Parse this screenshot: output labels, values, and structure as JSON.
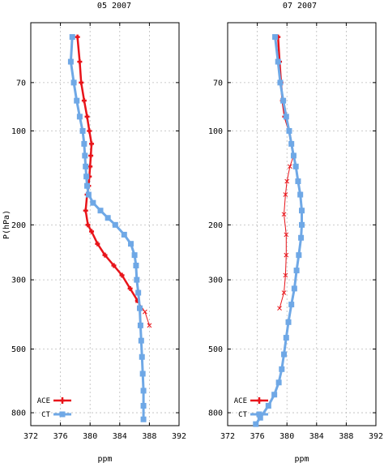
{
  "chart_data": [
    {
      "type": "line",
      "title": "05 2007",
      "xlabel": "ppm",
      "ylabel": "P(hPa)",
      "xlim": [
        372,
        392
      ],
      "xticks": [
        "372",
        "376",
        "380",
        "384",
        "388",
        "392"
      ],
      "ylim": [
        45,
        880
      ],
      "yscale": "log",
      "yticks": [
        "70",
        "100",
        "200",
        "300",
        "500",
        "800"
      ],
      "grid": true,
      "legend_position": "bottom-left",
      "series": [
        {
          "name": "ACE",
          "color": "#e8141a",
          "points": [
            {
              "y": 50,
              "x": 378.3
            },
            {
              "y": 60,
              "x": 378.6
            },
            {
              "y": 70,
              "x": 378.8
            },
            {
              "y": 80,
              "x": 379.2
            },
            {
              "y": 90,
              "x": 379.6
            },
            {
              "y": 100,
              "x": 379.9
            },
            {
              "y": 110,
              "x": 380.2
            },
            {
              "y": 120,
              "x": 380.1
            },
            {
              "y": 130,
              "x": 380.0
            },
            {
              "y": 140,
              "x": 379.9
            },
            {
              "y": 150,
              "x": 379.8
            },
            {
              "y": 160,
              "x": 379.6
            },
            {
              "y": 180,
              "x": 379.4
            },
            {
              "y": 200,
              "x": 379.7
            },
            {
              "y": 210,
              "x": 380.2
            },
            {
              "y": 230,
              "x": 381.0
            },
            {
              "y": 250,
              "x": 382.0
            },
            {
              "y": 270,
              "x": 383.2
            },
            {
              "y": 290,
              "x": 384.3
            },
            {
              "y": 320,
              "x": 385.4
            },
            {
              "y": 350,
              "x": 386.4
            }
          ]
        },
        {
          "name": "ACE",
          "color": "#e8141a",
          "points": [
            {
              "y": 350,
              "x": 386.4
            },
            {
              "y": 380,
              "x": 387.4
            },
            {
              "y": 420,
              "x": 388.0
            }
          ]
        },
        {
          "name": "CT",
          "color": "#6fa8e6",
          "points": [
            {
              "y": 50,
              "x": 377.6
            },
            {
              "y": 60,
              "x": 377.4
            },
            {
              "y": 70,
              "x": 377.8
            },
            {
              "y": 80,
              "x": 378.2
            },
            {
              "y": 90,
              "x": 378.6
            },
            {
              "y": 100,
              "x": 379.0
            },
            {
              "y": 110,
              "x": 379.2
            },
            {
              "y": 120,
              "x": 379.3
            },
            {
              "y": 130,
              "x": 379.4
            },
            {
              "y": 140,
              "x": 379.5
            },
            {
              "y": 150,
              "x": 379.6
            },
            {
              "y": 160,
              "x": 379.8
            },
            {
              "y": 170,
              "x": 380.4
            },
            {
              "y": 180,
              "x": 381.4
            },
            {
              "y": 190,
              "x": 382.4
            },
            {
              "y": 200,
              "x": 383.4
            },
            {
              "y": 215,
              "x": 384.6
            },
            {
              "y": 230,
              "x": 385.5
            },
            {
              "y": 250,
              "x": 386.0
            },
            {
              "y": 270,
              "x": 386.2
            },
            {
              "y": 300,
              "x": 386.3
            },
            {
              "y": 330,
              "x": 386.5
            },
            {
              "y": 370,
              "x": 386.7
            },
            {
              "y": 420,
              "x": 386.8
            },
            {
              "y": 470,
              "x": 386.9
            },
            {
              "y": 530,
              "x": 387.0
            },
            {
              "y": 600,
              "x": 387.1
            },
            {
              "y": 680,
              "x": 387.2
            },
            {
              "y": 760,
              "x": 387.2
            },
            {
              "y": 840,
              "x": 387.2
            }
          ]
        }
      ]
    },
    {
      "type": "line",
      "title": "07 2007",
      "xlabel": "ppm",
      "ylabel": "",
      "xlim": [
        372,
        392
      ],
      "xticks": [
        "372",
        "376",
        "380",
        "384",
        "388",
        "392"
      ],
      "ylim": [
        45,
        880
      ],
      "yscale": "log",
      "yticks": [
        "70",
        "100",
        "200",
        "300",
        "500",
        "800"
      ],
      "grid": true,
      "legend_position": "bottom-left",
      "series": [
        {
          "name": "ACE",
          "color": "#e8141a",
          "points": [
            {
              "y": 50,
              "x": 378.8
            },
            {
              "y": 60,
              "x": 379.0
            },
            {
              "y": 70,
              "x": 379.2
            },
            {
              "y": 80,
              "x": 379.4
            },
            {
              "y": 90,
              "x": 379.7
            },
            {
              "y": 100,
              "x": 380.3
            },
            {
              "y": 110,
              "x": 380.6
            },
            {
              "y": 120,
              "x": 380.9
            }
          ]
        },
        {
          "name": "ACE",
          "color": "#e8141a",
          "points": [
            {
              "y": 120,
              "x": 380.9
            },
            {
              "y": 130,
              "x": 380.4
            },
            {
              "y": 145,
              "x": 380.0
            },
            {
              "y": 160,
              "x": 379.8
            },
            {
              "y": 185,
              "x": 379.6
            },
            {
              "y": 215,
              "x": 379.9
            },
            {
              "y": 250,
              "x": 379.9
            },
            {
              "y": 290,
              "x": 379.8
            },
            {
              "y": 330,
              "x": 379.6
            },
            {
              "y": 370,
              "x": 379.0
            }
          ]
        },
        {
          "name": "CT",
          "color": "#6fa8e6",
          "points": [
            {
              "y": 50,
              "x": 378.4
            },
            {
              "y": 60,
              "x": 378.8
            },
            {
              "y": 70,
              "x": 379.1
            },
            {
              "y": 80,
              "x": 379.5
            },
            {
              "y": 90,
              "x": 379.9
            },
            {
              "y": 100,
              "x": 380.3
            },
            {
              "y": 110,
              "x": 380.6
            },
            {
              "y": 120,
              "x": 380.9
            },
            {
              "y": 130,
              "x": 381.2
            },
            {
              "y": 145,
              "x": 381.5
            },
            {
              "y": 160,
              "x": 381.8
            },
            {
              "y": 180,
              "x": 382.0
            },
            {
              "y": 200,
              "x": 382.0
            },
            {
              "y": 220,
              "x": 381.9
            },
            {
              "y": 250,
              "x": 381.6
            },
            {
              "y": 280,
              "x": 381.3
            },
            {
              "y": 320,
              "x": 381.0
            },
            {
              "y": 360,
              "x": 380.6
            },
            {
              "y": 410,
              "x": 380.2
            },
            {
              "y": 460,
              "x": 379.9
            },
            {
              "y": 520,
              "x": 379.6
            },
            {
              "y": 580,
              "x": 379.3
            },
            {
              "y": 640,
              "x": 378.9
            },
            {
              "y": 700,
              "x": 378.3
            },
            {
              "y": 760,
              "x": 377.5
            },
            {
              "y": 830,
              "x": 376.4
            },
            {
              "y": 870,
              "x": 375.8
            }
          ]
        }
      ]
    }
  ]
}
